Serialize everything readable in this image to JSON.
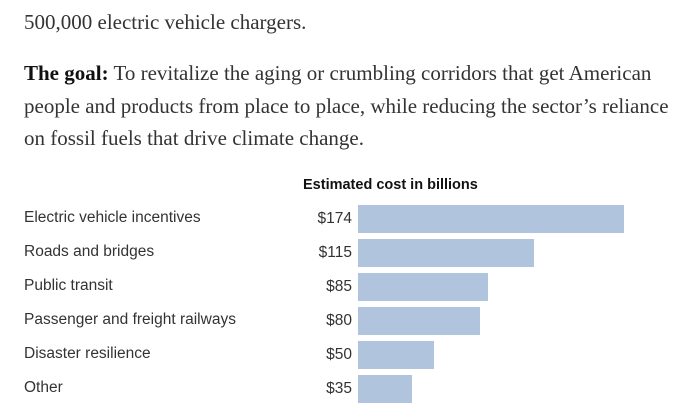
{
  "article": {
    "top_line": "500,000 electric vehicle chargers.",
    "goal_label": "The goal:",
    "goal_text": " To revitalize the aging or crumbling corridors that get American people and products from place to place, while reducing the sector’s reliance on fossil fuels that drive climate change."
  },
  "chart_data": {
    "type": "bar",
    "orientation": "horizontal",
    "title": "Estimated cost in billions",
    "categories": [
      "Electric vehicle incentives",
      "Roads and bridges",
      "Public transit",
      "Passenger and freight railways",
      "Disaster resilience",
      "Other"
    ],
    "values": [
      174,
      115,
      85,
      80,
      50,
      35
    ],
    "value_labels": [
      "$174",
      "$115",
      "$85",
      "$80",
      "$50",
      "$35"
    ],
    "bar_color": "#b0c4de",
    "xlim": [
      0,
      174
    ]
  }
}
